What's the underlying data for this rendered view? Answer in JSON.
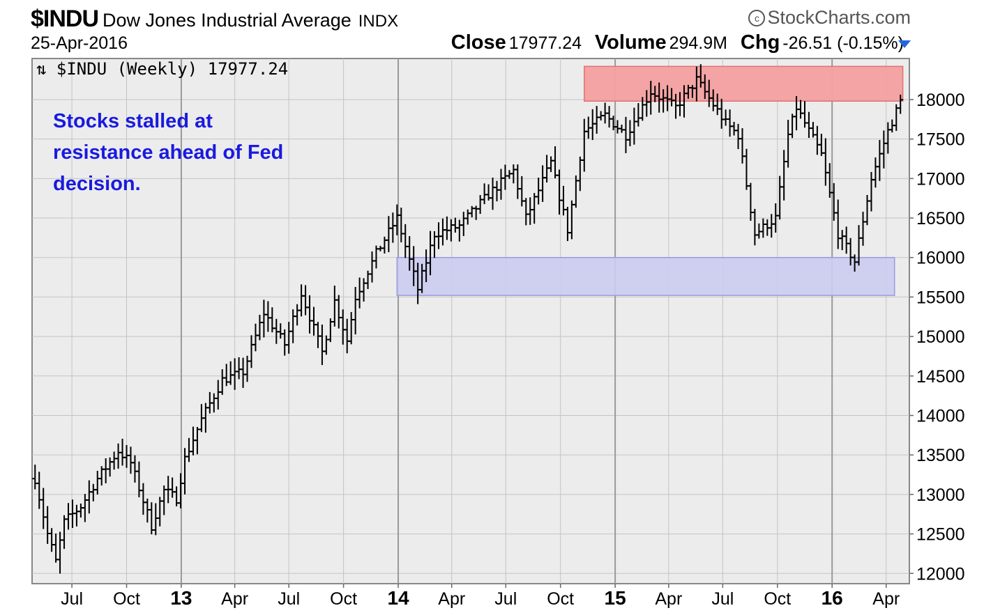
{
  "header": {
    "symbol": "$INDU",
    "name": "Dow Jones Industrial Average",
    "exchange": "INDX",
    "brand": "StockCharts.com",
    "date": "25-Apr-2016",
    "close_label": "Close",
    "close_value": "17977.24",
    "volume_label": "Volume",
    "volume_value": "294.9M",
    "chg_label": "Chg",
    "chg_value": "-26.51 (-0.15%)"
  },
  "legend": "⇅ $INDU (Weekly) 17977.24",
  "annotation": [
    "Stocks stalled at",
    "resistance ahead of Fed",
    "decision."
  ],
  "chart_data": {
    "type": "ohlc",
    "title": "$INDU (Weekly) 17977.24",
    "ylim": [
      11870,
      18520
    ],
    "y_ticks": [
      12000,
      12500,
      13000,
      13500,
      14000,
      14500,
      15000,
      15500,
      16000,
      16500,
      17000,
      17500,
      18000
    ],
    "x_ticks": [
      {
        "label": "Jul",
        "date": "2012-07-01"
      },
      {
        "label": "Oct",
        "date": "2012-10-01"
      },
      {
        "label": "13",
        "date": "2013-01-01",
        "bold": true
      },
      {
        "label": "Apr",
        "date": "2013-04-01"
      },
      {
        "label": "Jul",
        "date": "2013-07-01"
      },
      {
        "label": "Oct",
        "date": "2013-10-01"
      },
      {
        "label": "14",
        "date": "2014-01-01",
        "bold": true
      },
      {
        "label": "Apr",
        "date": "2014-04-01"
      },
      {
        "label": "Jul",
        "date": "2014-07-01"
      },
      {
        "label": "Oct",
        "date": "2014-10-01"
      },
      {
        "label": "15",
        "date": "2015-01-01",
        "bold": true
      },
      {
        "label": "Apr",
        "date": "2015-04-01"
      },
      {
        "label": "Jul",
        "date": "2015-07-01"
      },
      {
        "label": "Oct",
        "date": "2015-10-01"
      },
      {
        "label": "16",
        "date": "2016-01-01",
        "bold": true
      },
      {
        "label": "Apr",
        "date": "2016-04-01"
      }
    ],
    "x_range": [
      "2012-04-25",
      "2016-05-10"
    ],
    "resistance_zone": {
      "from": "2014-11-10",
      "to": "2016-04-29",
      "low": 17980,
      "high": 18420,
      "color": "#f4a0a0"
    },
    "support_zone": {
      "from": "2013-12-30",
      "to": "2016-04-15",
      "low": 15520,
      "high": 16000,
      "color": "#ccccf0"
    },
    "weekly_close_anchors": [
      [
        "2012-04-30",
        13200
      ],
      [
        "2012-05-21",
        12500
      ],
      [
        "2012-06-04",
        12150
      ],
      [
        "2012-06-18",
        12650
      ],
      [
        "2012-07-16",
        12850
      ],
      [
        "2012-08-13",
        13200
      ],
      [
        "2012-09-17",
        13550
      ],
      [
        "2012-10-08",
        13400
      ],
      [
        "2012-11-12",
        12600
      ],
      [
        "2012-12-03",
        13050
      ],
      [
        "2012-12-24",
        12950
      ],
      [
        "2013-01-07",
        13450
      ],
      [
        "2013-02-04",
        13950
      ],
      [
        "2013-03-11",
        14450
      ],
      [
        "2013-04-15",
        14550
      ],
      [
        "2013-05-20",
        15300
      ],
      [
        "2013-06-24",
        14900
      ],
      [
        "2013-07-22",
        15550
      ],
      [
        "2013-08-26",
        14800
      ],
      [
        "2013-09-16",
        15450
      ],
      [
        "2013-10-07",
        14950
      ],
      [
        "2013-10-21",
        15500
      ],
      [
        "2013-11-25",
        16050
      ],
      [
        "2013-12-30",
        16500
      ],
      [
        "2014-02-03",
        15600
      ],
      [
        "2014-03-03",
        16300
      ],
      [
        "2014-04-14",
        16400
      ],
      [
        "2014-06-02",
        16800
      ],
      [
        "2014-07-14",
        17100
      ],
      [
        "2014-08-04",
        16500
      ],
      [
        "2014-09-15",
        17200
      ],
      [
        "2014-10-13",
        16350
      ],
      [
        "2014-11-10",
        17600
      ],
      [
        "2014-12-15",
        17800
      ],
      [
        "2015-01-19",
        17550
      ],
      [
        "2015-03-02",
        18100
      ],
      [
        "2015-04-13",
        17900
      ],
      [
        "2015-05-18",
        18250
      ],
      [
        "2015-07-06",
        17700
      ],
      [
        "2015-07-27",
        17550
      ],
      [
        "2015-08-24",
        16300
      ],
      [
        "2015-09-28",
        16500
      ],
      [
        "2015-10-19",
        17550
      ],
      [
        "2015-11-02",
        17900
      ],
      [
        "2015-12-14",
        17300
      ],
      [
        "2016-01-11",
        16300
      ],
      [
        "2016-02-08",
        15950
      ],
      [
        "2016-03-07",
        17000
      ],
      [
        "2016-04-04",
        17600
      ],
      [
        "2016-04-25",
        17977.24
      ]
    ]
  }
}
